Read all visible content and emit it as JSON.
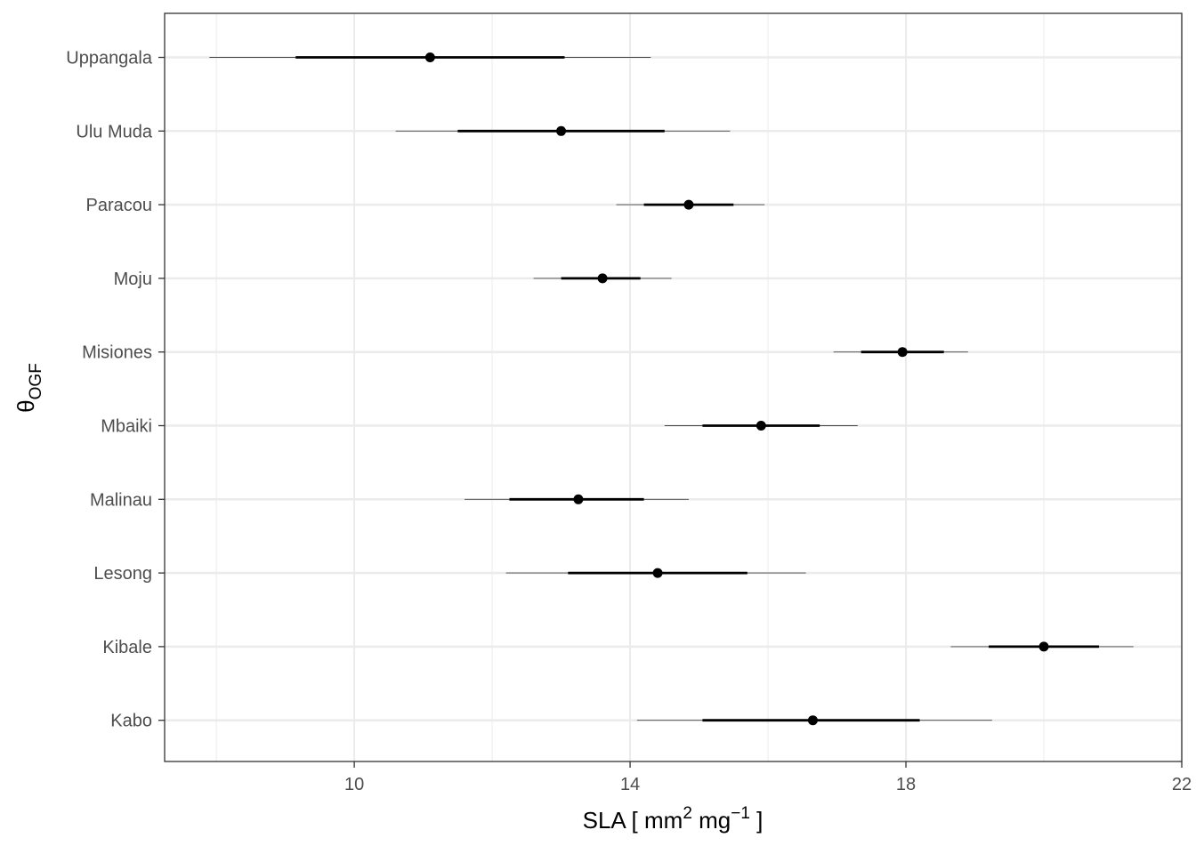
{
  "chart_data": {
    "type": "pointrange",
    "xlabel": {
      "base": "SLA [ mm",
      "sup1": "2",
      "mid": " mg",
      "sup2": "−1",
      "end": " ]"
    },
    "ylabel": {
      "symbol": "θ",
      "subscript": "OGF"
    },
    "xlim": [
      7.25,
      22
    ],
    "x_ticks": [
      10,
      14,
      18,
      22
    ],
    "x_minor_ticks": [
      8,
      12,
      16,
      20
    ],
    "grid": true,
    "categories": [
      "Uppangala",
      "Ulu Muda",
      "Paracou",
      "Moju",
      "Misiones",
      "Mbaiki",
      "Malinau",
      "Lesong",
      "Kibale",
      "Kabo"
    ],
    "series": [
      {
        "points": [
          {
            "label": "Uppangala",
            "mean": 11.1,
            "inner": [
              9.15,
              13.05
            ],
            "outer": [
              7.9,
              14.3
            ]
          },
          {
            "label": "Ulu Muda",
            "mean": 13.0,
            "inner": [
              11.5,
              14.5
            ],
            "outer": [
              10.6,
              15.45
            ]
          },
          {
            "label": "Paracou",
            "mean": 14.85,
            "inner": [
              14.2,
              15.5
            ],
            "outer": [
              13.8,
              15.95
            ]
          },
          {
            "label": "Moju",
            "mean": 13.6,
            "inner": [
              13.0,
              14.15
            ],
            "outer": [
              12.6,
              14.6
            ]
          },
          {
            "label": "Misiones",
            "mean": 17.95,
            "inner": [
              17.35,
              18.55
            ],
            "outer": [
              16.95,
              18.9
            ]
          },
          {
            "label": "Mbaiki",
            "mean": 15.9,
            "inner": [
              15.05,
              16.75
            ],
            "outer": [
              14.5,
              17.3
            ]
          },
          {
            "label": "Malinau",
            "mean": 13.25,
            "inner": [
              12.25,
              14.2
            ],
            "outer": [
              11.6,
              14.85
            ]
          },
          {
            "label": "Lesong",
            "mean": 14.4,
            "inner": [
              13.1,
              15.7
            ],
            "outer": [
              12.2,
              16.55
            ]
          },
          {
            "label": "Kibale",
            "mean": 20.0,
            "inner": [
              19.2,
              20.8
            ],
            "outer": [
              18.65,
              21.3
            ]
          },
          {
            "label": "Kabo",
            "mean": 16.65,
            "inner": [
              15.05,
              18.2
            ],
            "outer": [
              14.1,
              19.25
            ]
          }
        ]
      }
    ]
  }
}
